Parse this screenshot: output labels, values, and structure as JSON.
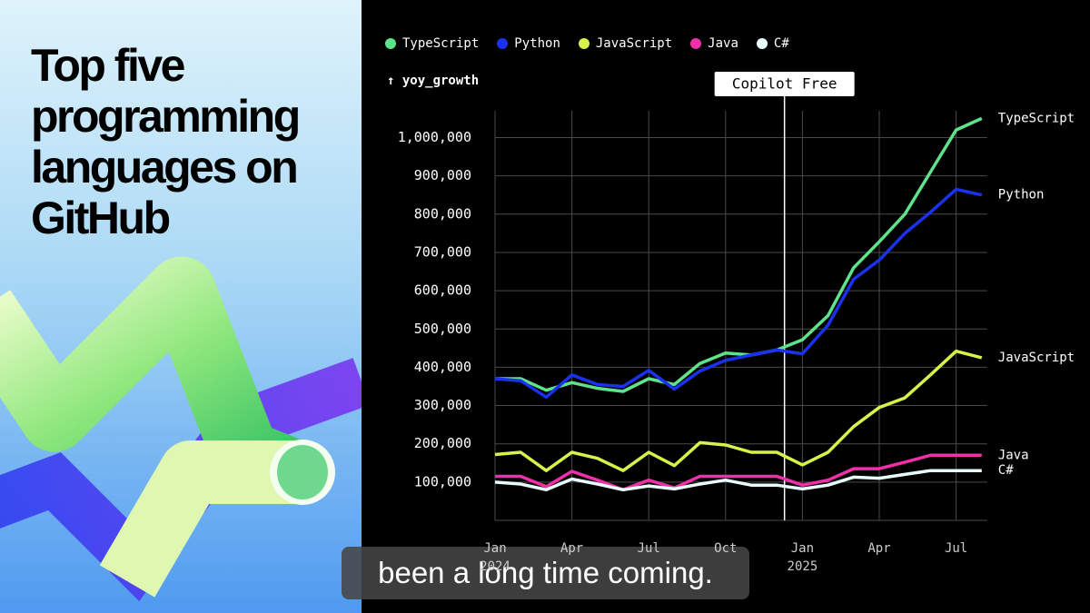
{
  "title": "Top five programming languages on GitHub",
  "caption": "been a long time coming.",
  "chart_data": {
    "type": "line",
    "y_axis_label": "↑ yoy_growth",
    "categories": [
      "Jan 2024",
      null,
      null,
      "Apr",
      null,
      null,
      "Jul",
      null,
      null,
      "Oct",
      null,
      null,
      "Jan 2025",
      null,
      null,
      "Apr",
      null,
      null,
      "Jul",
      null
    ],
    "series": [
      {
        "name": "TypeScript",
        "color": "#5fe38a",
        "values": [
          370000,
          370000,
          340000,
          360000,
          345000,
          337000,
          370000,
          355000,
          410000,
          437000,
          432000,
          445000,
          472000,
          535000,
          660000,
          728000,
          800000,
          910000,
          1020000,
          1050000
        ]
      },
      {
        "name": "Python",
        "color": "#1a32f0",
        "values": [
          370000,
          365000,
          322000,
          380000,
          355000,
          350000,
          392000,
          343000,
          390000,
          418000,
          432000,
          445000,
          435000,
          510000,
          630000,
          680000,
          750000,
          805000,
          865000,
          850000
        ]
      },
      {
        "name": "JavaScript",
        "color": "#d8f24a",
        "values": [
          172000,
          178000,
          130000,
          178000,
          162000,
          130000,
          178000,
          143000,
          203000,
          197000,
          178000,
          178000,
          145000,
          178000,
          245000,
          295000,
          320000,
          380000,
          442000,
          425000
        ]
      },
      {
        "name": "Java",
        "color": "#f02fa8",
        "values": [
          115000,
          115000,
          88000,
          128000,
          105000,
          80000,
          105000,
          85000,
          115000,
          115000,
          115000,
          115000,
          92000,
          105000,
          135000,
          135000,
          152000,
          170000,
          170000,
          170000
        ]
      },
      {
        "name": "C#",
        "color": "#e8fbfb",
        "values": [
          100000,
          95000,
          80000,
          108000,
          95000,
          80000,
          90000,
          82000,
          95000,
          105000,
          92000,
          92000,
          82000,
          92000,
          113000,
          110000,
          120000,
          130000,
          130000,
          130000
        ]
      }
    ],
    "ylim": [
      0,
      1070000
    ],
    "yticks": [
      {
        "value": 100000,
        "label": "100,000"
      },
      {
        "value": 200000,
        "label": "200,000"
      },
      {
        "value": 300000,
        "label": "300,000"
      },
      {
        "value": 400000,
        "label": "400,000"
      },
      {
        "value": 500000,
        "label": "500,000"
      },
      {
        "value": 600000,
        "label": "600,000"
      },
      {
        "value": 700000,
        "label": "700,000"
      },
      {
        "value": 800000,
        "label": "800,000"
      },
      {
        "value": 900000,
        "label": "900,000"
      },
      {
        "value": 1000000,
        "label": "1,000,000"
      }
    ],
    "grid": true,
    "legend": "top",
    "annotation": {
      "text": "Copilot Free",
      "x": 11.3
    }
  }
}
